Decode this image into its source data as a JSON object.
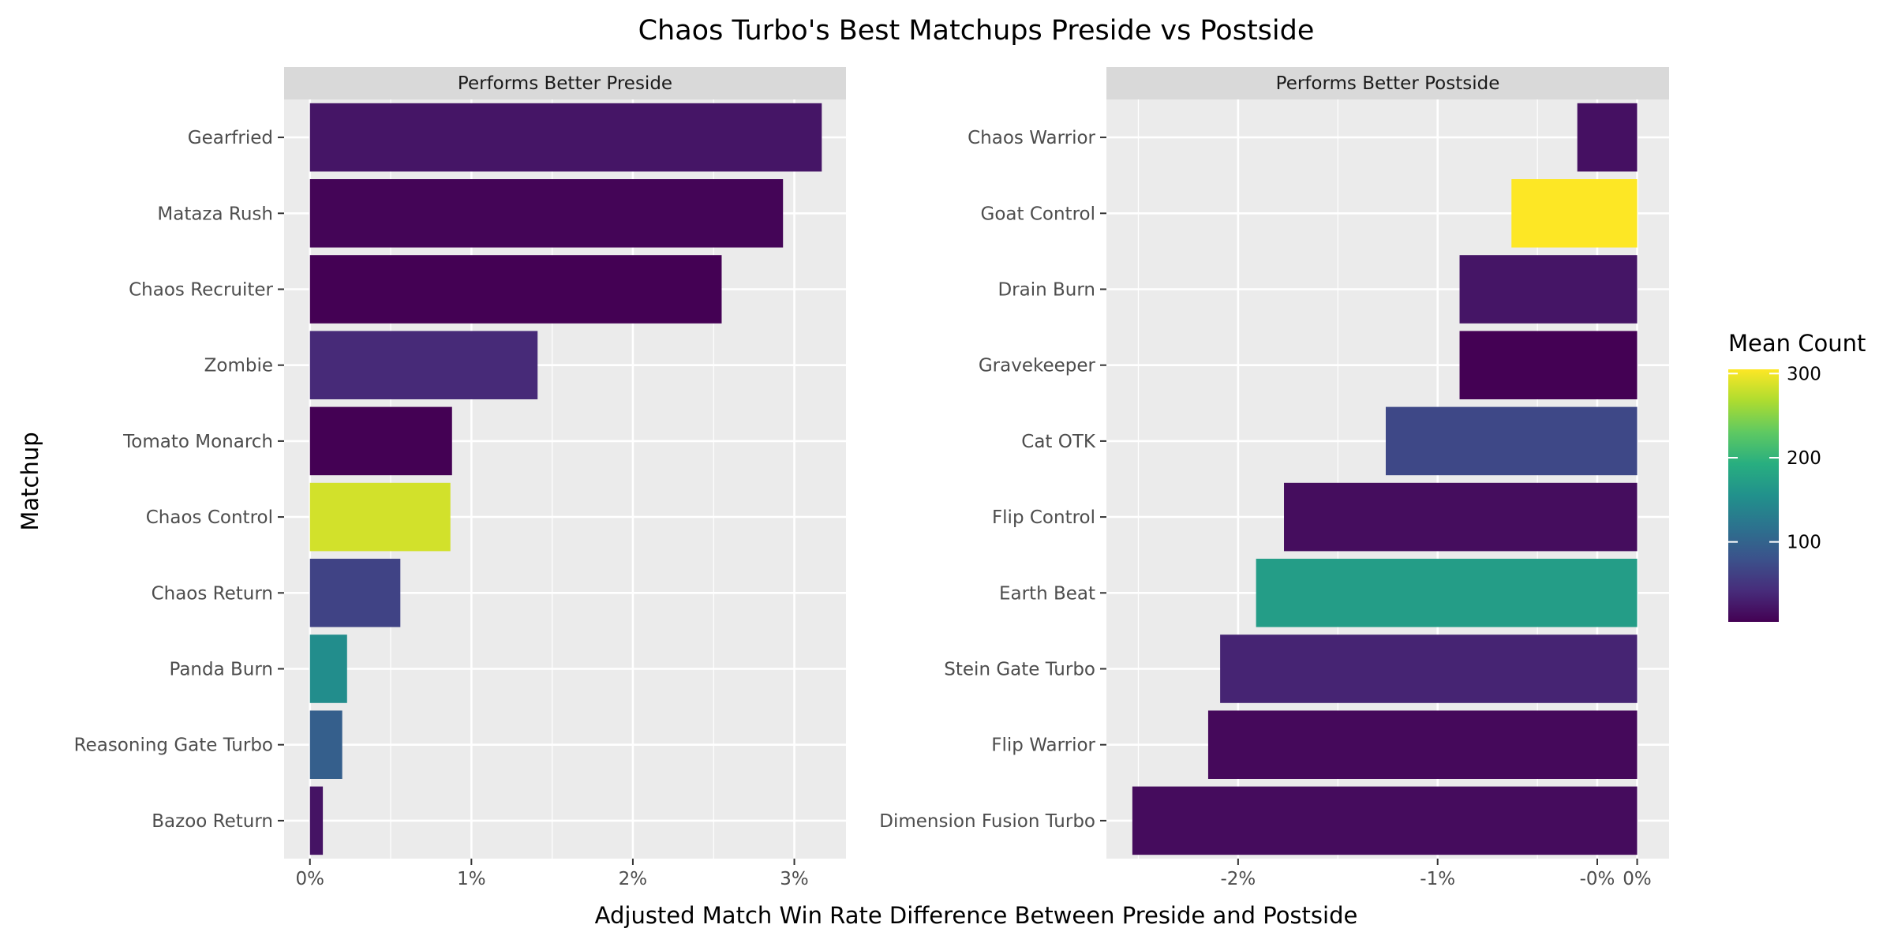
{
  "chart_data": {
    "type": "bar",
    "orientation": "horizontal",
    "title": "Chaos Turbo's Best Matchups Preside vs Postside",
    "xlabel": "Adjusted Match Win Rate Difference Between Preside and Postside",
    "ylabel": "Matchup",
    "legend": {
      "title": "Mean Count",
      "position": "right",
      "ticks": [
        "100",
        "200",
        "300"
      ],
      "tick_values": [
        100,
        200,
        300
      ],
      "range": [
        5,
        305
      ],
      "colormap": "viridis"
    },
    "grid": true,
    "panels": [
      {
        "title": "Performs Better Preside",
        "xlim": [
          -0.16,
          3.32
        ],
        "x_ticks": [
          0,
          1,
          2,
          3
        ],
        "x_tick_labels": [
          "0%",
          "1%",
          "2%",
          "3%"
        ],
        "categories": [
          "Gearfried",
          "Mataza Rush",
          "Chaos Recruiter",
          "Zombie",
          "Tomato Monarch",
          "Chaos Control",
          "Chaos Return",
          "Panda Burn",
          "Reasoning Gate Turbo",
          "Bazoo Return"
        ],
        "values": [
          3.17,
          2.93,
          2.55,
          1.41,
          0.88,
          0.87,
          0.56,
          0.23,
          0.2,
          0.08
        ],
        "mean_count": [
          22,
          8,
          3,
          40,
          4,
          285,
          65,
          150,
          95,
          20
        ]
      },
      {
        "title": "Performs Better Postside",
        "xlim": [
          -2.66,
          0.16
        ],
        "x_ticks": [
          -2,
          -1,
          0
        ],
        "x_tick_labels": [
          "-2%",
          "-1%",
          "-0%",
          "0%"
        ],
        "x_tick_positions": [
          -2,
          -1,
          -0.2,
          0
        ],
        "categories": [
          "Chaos Warrior",
          "Goat Control",
          "Drain Burn",
          "Gravekeeper",
          "Cat OTK",
          "Flip Control",
          "Earth Beat",
          "Stein Gate Turbo",
          "Flip Warrior",
          "Dimension Fusion Turbo"
        ],
        "values": [
          -0.3,
          -0.63,
          -0.89,
          -0.89,
          -1.26,
          -1.77,
          -1.91,
          -2.09,
          -2.15,
          -2.53
        ],
        "mean_count": [
          18,
          305,
          22,
          2,
          70,
          15,
          170,
          35,
          12,
          14
        ]
      }
    ]
  }
}
